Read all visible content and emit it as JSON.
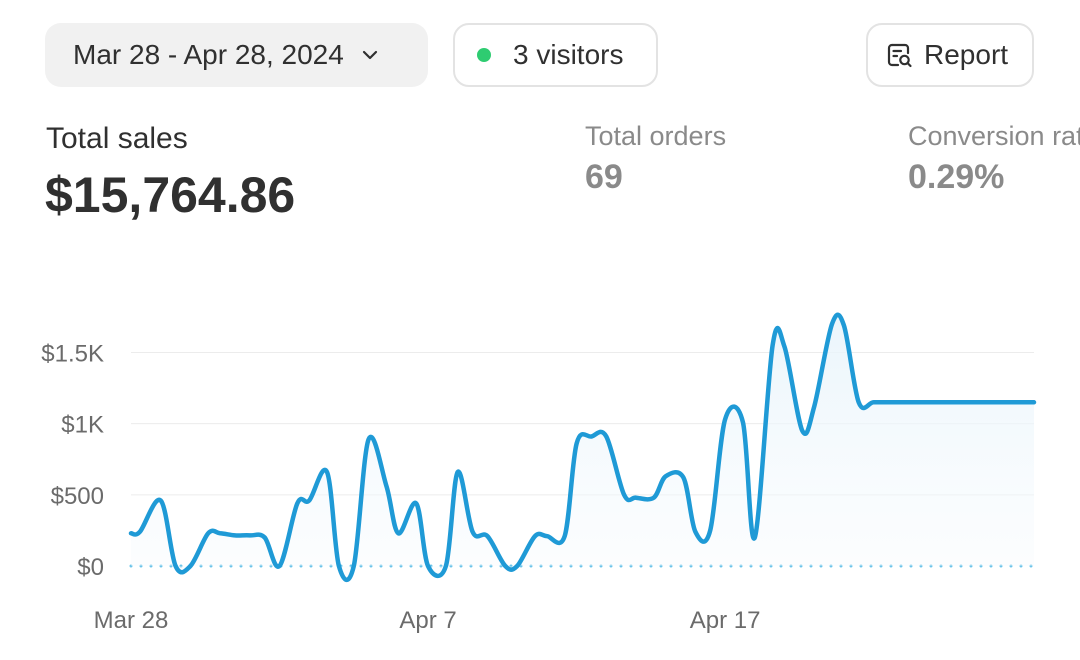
{
  "filters": {
    "date_range": "Mar 28 - Apr 28, 2024",
    "visitors": "3 visitors",
    "visitors_dot_color": "#2ecc71",
    "report_label": "Report",
    "report_icon": "report-search-icon",
    "dropdown_icon": "chevron-down-icon"
  },
  "metrics": {
    "total_sales": {
      "label": "Total sales",
      "value": "$15,764.86"
    },
    "total_orders": {
      "label": "Total orders",
      "value": "69"
    },
    "conversion": {
      "label": "Conversion rate",
      "value": "0.29%"
    }
  },
  "chart_data": {
    "type": "line",
    "line_color": "#1f9ad6",
    "baseline_color": "#6cc4ea",
    "x_tick_labels": [
      "Mar 28",
      "Apr 7",
      "Apr 17"
    ],
    "x_tick_positions": [
      0,
      10,
      20
    ],
    "y_tick_labels": [
      "$0",
      "$500",
      "$1K",
      "$1.5K"
    ],
    "y_tick_values": [
      0,
      500,
      1000,
      1500
    ],
    "ylim": [
      0,
      1700
    ],
    "x": [
      0,
      0.3,
      1,
      1.5,
      2,
      2.6,
      3,
      3.5,
      4,
      4.5,
      5,
      5.6,
      6,
      6.6,
      7,
      7.5,
      8,
      8.6,
      9,
      9.6,
      10,
      10.6,
      11,
      11.5,
      12,
      12.6,
      13,
      13.6,
      14,
      14.6,
      15,
      15.5,
      16,
      16.6,
      17,
      17.6,
      18,
      18.6,
      19,
      19.5,
      20,
      20.6,
      21,
      21.6,
      22,
      22.6,
      23,
      23.6,
      24,
      24.5,
      25,
      25.6,
      26,
      26.6,
      27,
      27.6,
      28,
      28.6,
      29,
      29.6,
      30,
      30.4
    ],
    "y": [
      230,
      240,
      460,
      0,
      0,
      230,
      230,
      215,
      215,
      200,
      0,
      440,
      460,
      660,
      0,
      0,
      890,
      560,
      230,
      440,
      0,
      0,
      660,
      240,
      210,
      0,
      0,
      210,
      210,
      210,
      860,
      910,
      910,
      500,
      480,
      480,
      630,
      620,
      240,
      250,
      1030,
      1010,
      200,
      1550,
      1540,
      950,
      1120,
      1700,
      1690,
      1150,
      1150,
      1150,
      1150,
      1150,
      1150,
      1150,
      1150,
      1150,
      1150,
      1150,
      1150,
      1150
    ]
  }
}
